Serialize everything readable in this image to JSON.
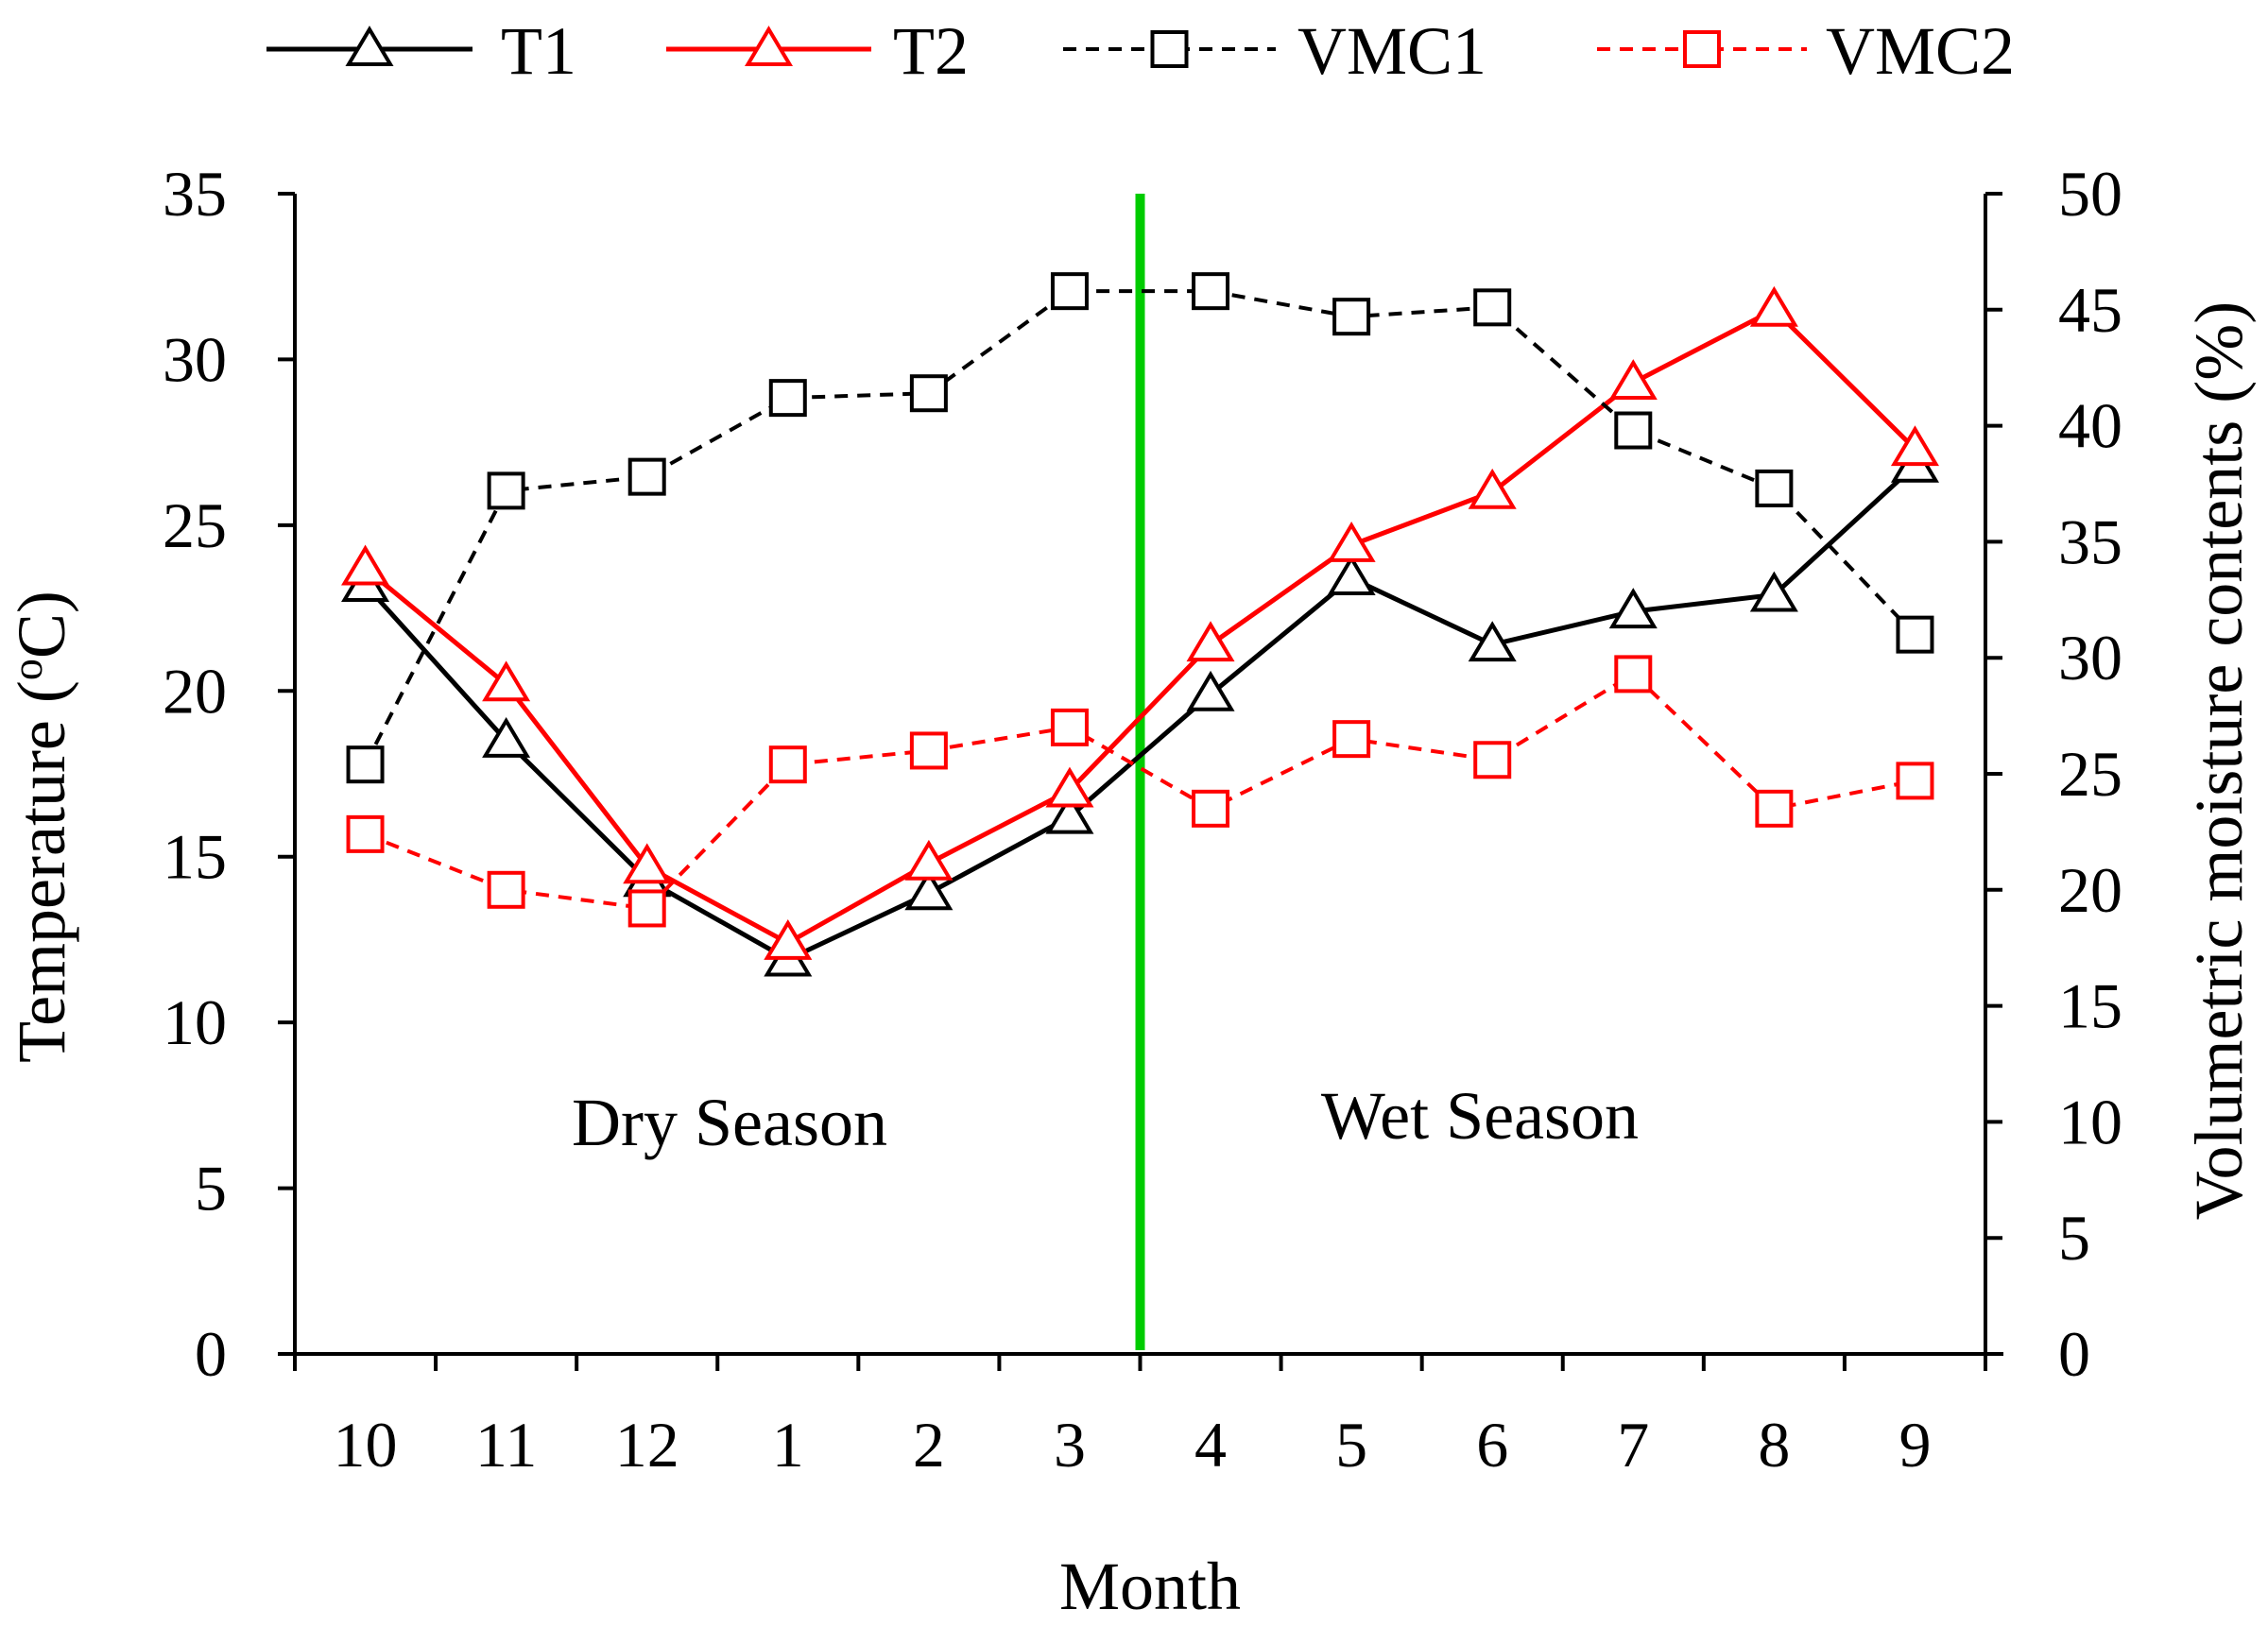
{
  "chart_data": {
    "type": "line",
    "xlabel": "Month",
    "ylabel_left": "Temperature (",
    "ylabel_left_sup": "o",
    "ylabel_left_unit": "C)",
    "ylabel_right": "Volumetric moisture contents (%)",
    "categories": [
      "10",
      "11",
      "12",
      "1",
      "2",
      "3",
      "4",
      "5",
      "6",
      "7",
      "8",
      "9"
    ],
    "ylim_left": [
      0,
      35
    ],
    "yticks_left": [
      0,
      5,
      10,
      15,
      20,
      25,
      30,
      35
    ],
    "ylim_right": [
      0,
      50
    ],
    "yticks_right": [
      0,
      5,
      10,
      15,
      20,
      25,
      30,
      35,
      40,
      45,
      50
    ],
    "grid": false,
    "legend_position": "top",
    "series": [
      {
        "name": "T1",
        "axis": "left",
        "marker": "triangle",
        "dash": "solid",
        "color": "#000000",
        "values": [
          23.2,
          18.5,
          14.3,
          11.9,
          13.9,
          16.2,
          19.9,
          23.4,
          21.4,
          22.4,
          22.9,
          26.8
        ]
      },
      {
        "name": "T2",
        "axis": "left",
        "marker": "triangle",
        "dash": "solid",
        "color": "#ff0000",
        "values": [
          23.7,
          20.2,
          14.7,
          12.4,
          14.8,
          17.0,
          21.4,
          24.4,
          26.0,
          29.3,
          31.5,
          27.3
        ]
      },
      {
        "name": "VMC1",
        "axis": "right",
        "marker": "square",
        "dash": "dashed",
        "color": "#000000",
        "values": [
          25.4,
          37.2,
          37.8,
          41.2,
          41.4,
          45.8,
          45.8,
          44.7,
          45.1,
          39.8,
          37.3,
          31.0
        ]
      },
      {
        "name": "VMC2",
        "axis": "right",
        "marker": "square",
        "dash": "dashed",
        "color": "#ff0000",
        "values": [
          22.4,
          20.0,
          19.2,
          25.4,
          26.0,
          27.0,
          23.5,
          26.5,
          25.6,
          29.3,
          23.5,
          24.7
        ]
      }
    ],
    "season_divider": {
      "after_category_index": 5,
      "color": "#00cc00"
    },
    "annotations": [
      {
        "label": "Dry Season"
      },
      {
        "label": "Wet Season"
      }
    ]
  }
}
